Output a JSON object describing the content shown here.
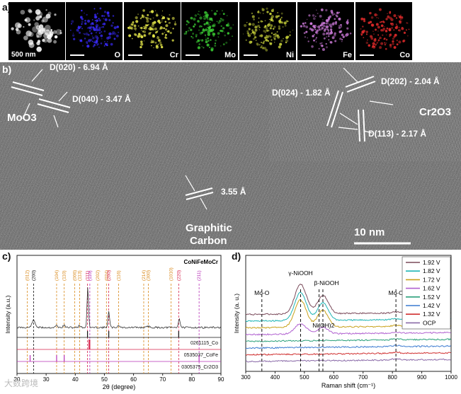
{
  "panel_a": {
    "letter": "a)",
    "scale_label": "500 nm",
    "maps": [
      {
        "label": "",
        "color": "#ffffff"
      },
      {
        "label": "O",
        "color": "#3a2bff"
      },
      {
        "label": "Cr",
        "color": "#e6e84a"
      },
      {
        "label": "Mo",
        "color": "#39c832"
      },
      {
        "label": "Ni",
        "color": "#c8d23a"
      },
      {
        "label": "Fe",
        "color": "#d37ee0"
      },
      {
        "label": "Co",
        "color": "#e02a2a"
      }
    ]
  },
  "panel_b": {
    "letter": "b)",
    "labels": {
      "d020": "D(020) - 6.94 Å",
      "d040": "D(040) - 3.47 Å",
      "moo3": "MoO3",
      "d024": "D(024) - 1.82 Å",
      "d202": "D(202) - 2.04 Å",
      "d113": "D(113) - 2.17 Å",
      "cr2o3": "Cr2O3",
      "d355": "3.55 Å",
      "graphitic": "Graphitic",
      "carbon": "Carbon",
      "scale": "10 nm"
    }
  },
  "panel_c": {
    "letter": "c)",
    "chart_data": {
      "type": "line",
      "title": "CoNiFeMoCr",
      "xlabel": "2θ (degree)",
      "ylabel": "Intensity (a.u.)",
      "xlim": [
        20,
        90
      ],
      "xticks": [
        20,
        30,
        40,
        50,
        60,
        70,
        80,
        90
      ],
      "peak_labels": [
        {
          "x": 23.5,
          "label": "(012)",
          "color": "#d98a1c"
        },
        {
          "x": 25.7,
          "label": "(200)",
          "color": "#111111"
        },
        {
          "x": 33.6,
          "label": "(104)",
          "color": "#d98a1c"
        },
        {
          "x": 36.2,
          "label": "(110)",
          "color": "#d98a1c"
        },
        {
          "x": 39.8,
          "label": "(006)",
          "color": "#d98a1c"
        },
        {
          "x": 41.5,
          "label": "(113)",
          "color": "#d98a1c"
        },
        {
          "x": 44.2,
          "label": "(111)",
          "color": "#d6204a"
        },
        {
          "x": 45.0,
          "label": "(110)",
          "color": "#b833b8"
        },
        {
          "x": 47.7,
          "label": "(202)",
          "color": "#d98a1c"
        },
        {
          "x": 50.7,
          "label": "(024)",
          "color": "#d98a1c"
        },
        {
          "x": 51.5,
          "label": "(200)",
          "color": "#d6204a"
        },
        {
          "x": 54.9,
          "label": "(116)",
          "color": "#d98a1c"
        },
        {
          "x": 63.5,
          "label": "(214)",
          "color": "#d98a1c"
        },
        {
          "x": 65.1,
          "label": "(300)",
          "color": "#d98a1c"
        },
        {
          "x": 72.9,
          "label": "(1010)",
          "color": "#d98a1c"
        },
        {
          "x": 75.5,
          "label": "(220)",
          "color": "#d6204a"
        },
        {
          "x": 82.5,
          "label": "(211)",
          "color": "#b833b8"
        }
      ],
      "reference_cards": [
        {
          "name": "0261115_Co",
          "color": "#111111"
        },
        {
          "name": "0535037_CoFe",
          "color": "#d6204a"
        },
        {
          "name": "0305375_Cr2O3",
          "color": "#b833b8"
        }
      ]
    }
  },
  "panel_d": {
    "letter": "d)",
    "chart_data": {
      "type": "line",
      "xlabel": "Raman shift (cm⁻¹)",
      "ylabel": "Intensity (a. u.)",
      "xlim": [
        300,
        1000
      ],
      "xticks": [
        300,
        400,
        500,
        600,
        700,
        800,
        900,
        1000
      ],
      "annotations": [
        {
          "x": 355,
          "label": "Mo-O"
        },
        {
          "x": 487,
          "label": "γ-NiOOH"
        },
        {
          "x": 563,
          "label": "β-NiOOH"
        },
        {
          "x": 555,
          "label": "Ni(OH)2"
        },
        {
          "x": 812,
          "label": "Mo-O"
        }
      ],
      "dashed_lines": [
        355,
        487,
        550,
        563,
        812
      ],
      "series": [
        {
          "name": "1.92 V",
          "color": "#7a4a5a",
          "peak": 1.0
        },
        {
          "name": "1.82 V",
          "color": "#1fb5b5",
          "peak": 0.95
        },
        {
          "name": "1.72 V",
          "color": "#c8a21a",
          "peak": 0.92
        },
        {
          "name": "1.62 V",
          "color": "#b060d0",
          "peak": 0.35
        },
        {
          "name": "1.52 V",
          "color": "#2aa07a",
          "peak": 0.0
        },
        {
          "name": "1.42 V",
          "color": "#3a7ad0",
          "peak": 0.0
        },
        {
          "name": "1.32 V",
          "color": "#d03030",
          "peak": 0.0
        },
        {
          "name": "OCP",
          "color": "#8a6aa8",
          "peak": 0.0
        }
      ]
    }
  },
  "watermark": "大数跨境"
}
